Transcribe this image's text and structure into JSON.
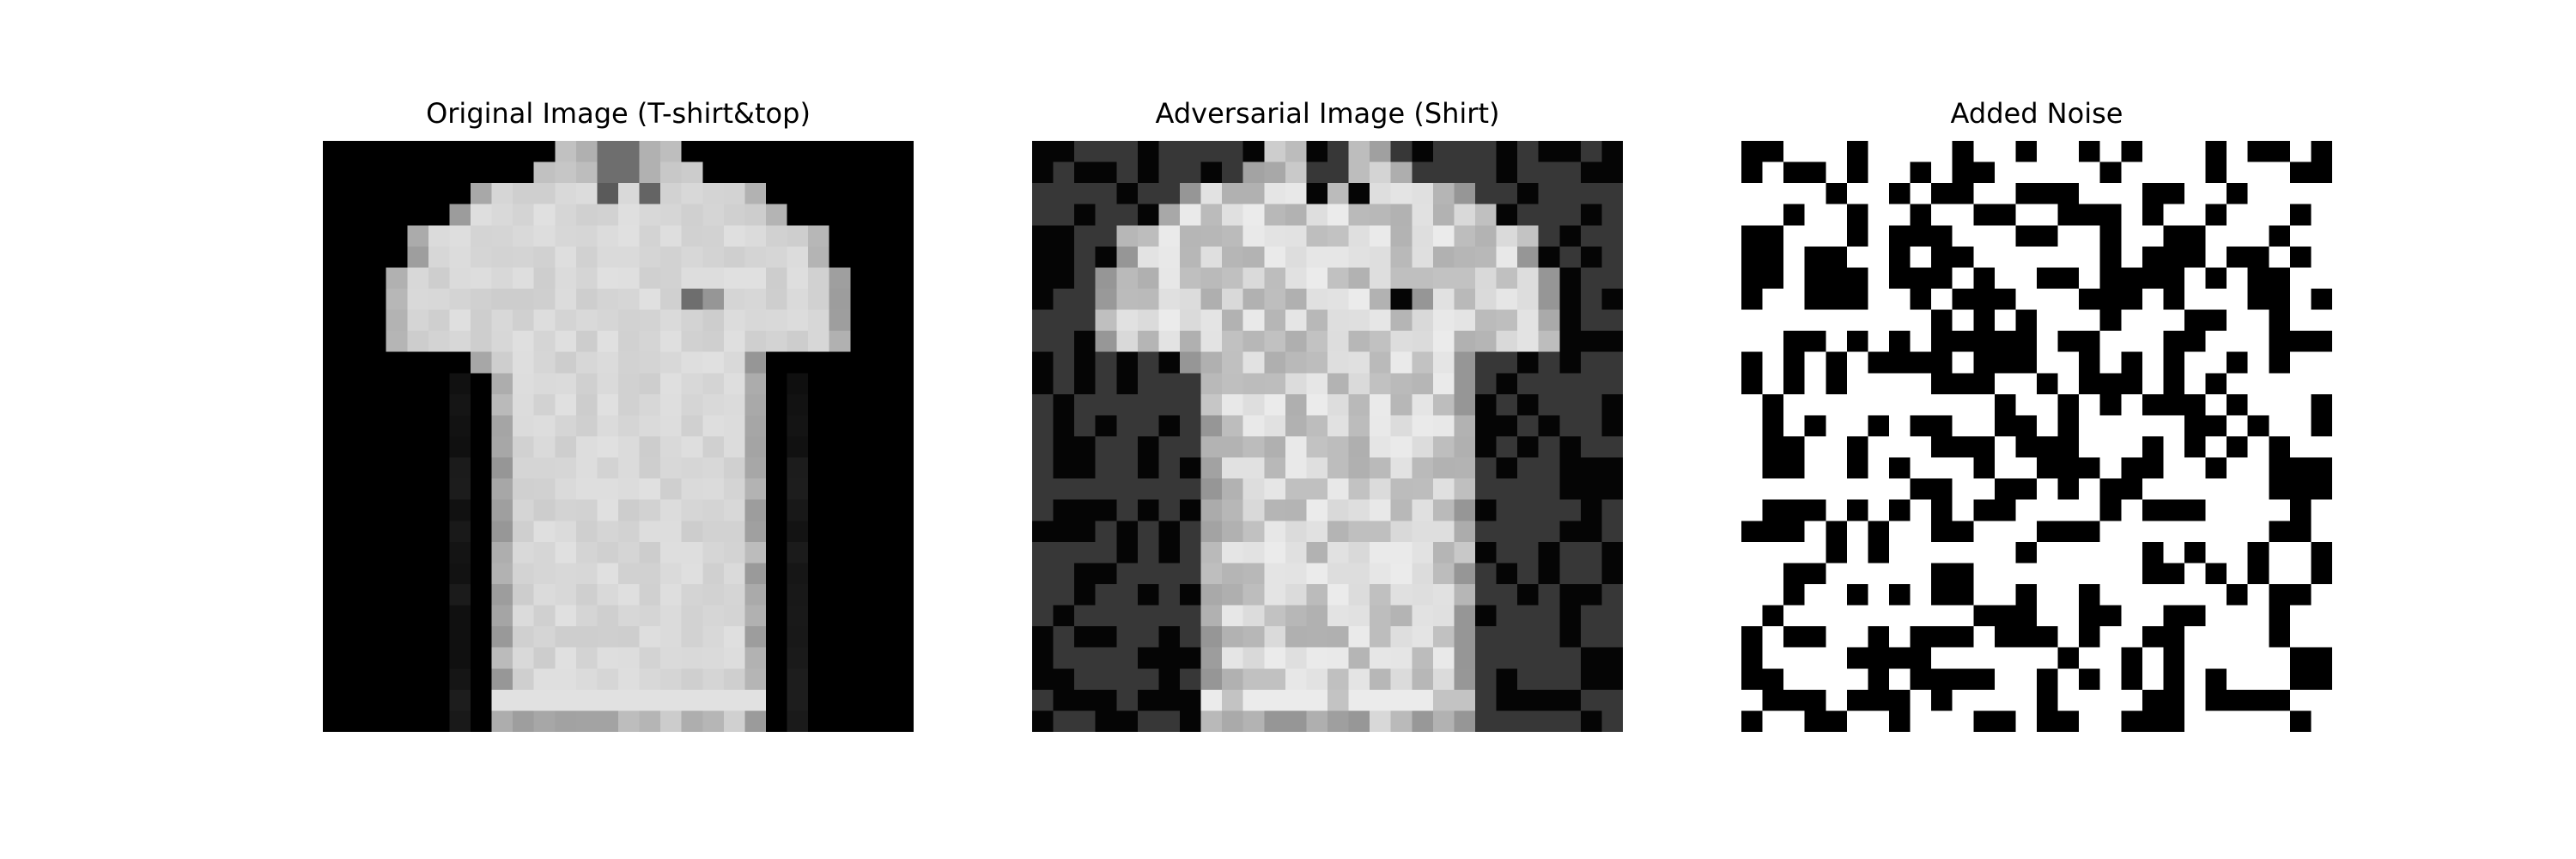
{
  "figure": {
    "panels": [
      {
        "id": "original",
        "title": "Original Image (T-shirt&top)"
      },
      {
        "id": "adversarial",
        "title": "Adversarial Image (Shirt)"
      },
      {
        "id": "noise",
        "title": "Added Noise"
      }
    ]
  }
}
